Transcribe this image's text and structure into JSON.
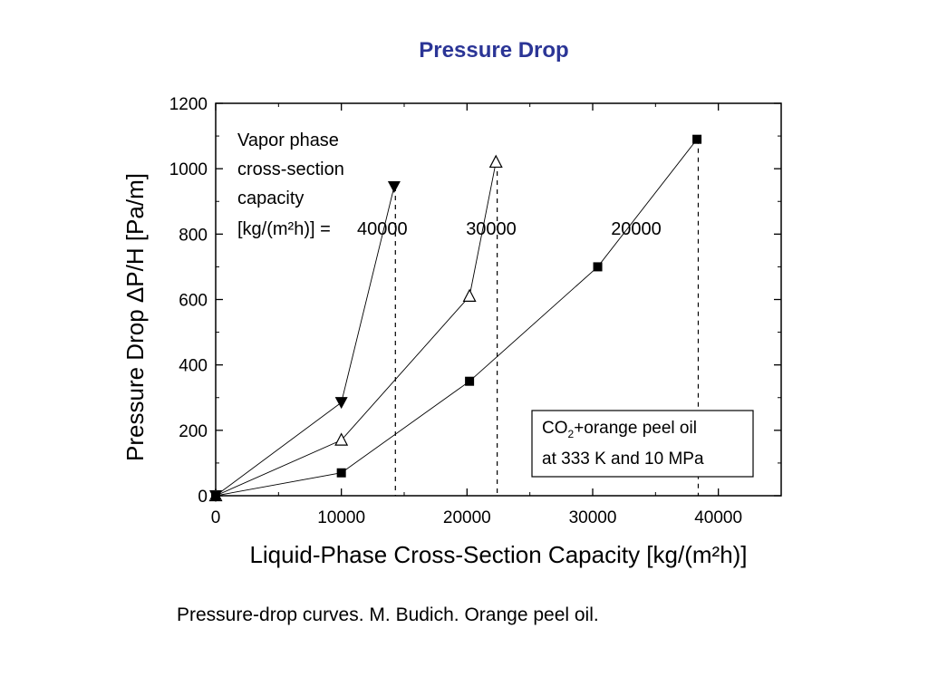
{
  "slide": {
    "title": "Pressure Drop",
    "caption": "Pressure-drop curves. M. Budich. Orange peel oil."
  },
  "chart_data": {
    "type": "line",
    "title": "",
    "xlabel": "Liquid-Phase Cross-Section Capacity [kg/(m²h)]",
    "ylabel": "Pressure Drop ΔP/H [Pa/m]",
    "xlim": [
      0,
      45000
    ],
    "ylim": [
      0,
      1200
    ],
    "xticks": [
      0,
      10000,
      20000,
      30000,
      40000
    ],
    "xtick_labels": [
      "0",
      "10000",
      "20000",
      "30000",
      "40000"
    ],
    "yticks": [
      0,
      200,
      400,
      600,
      800,
      1000,
      1200
    ],
    "ytick_labels": [
      "0",
      "200",
      "400",
      "600",
      "800",
      "1000",
      "1200"
    ],
    "grid": false,
    "series": [
      {
        "label": "40000",
        "marker": "filled-triangle-down",
        "x": [
          0,
          10000,
          14200
        ],
        "y": [
          0,
          285,
          945
        ],
        "flood_x": 14300
      },
      {
        "label": "30000",
        "marker": "open-triangle-up",
        "x": [
          0,
          10000,
          20200,
          22300
        ],
        "y": [
          0,
          170,
          610,
          1020
        ],
        "flood_x": 22400
      },
      {
        "label": "20000",
        "marker": "filled-square",
        "x": [
          0,
          10000,
          20200,
          30400,
          38300
        ],
        "y": [
          0,
          70,
          350,
          700,
          1090
        ],
        "flood_x": 38400
      }
    ],
    "annotations": {
      "vapor_lines": [
        "Vapor phase",
        "cross-section",
        "capacity",
        "[kg/(m²h)] = "
      ],
      "system_box": {
        "line1_prefix": "CO",
        "line1_sub": "2",
        "line1_rest": "+orange peel oil",
        "line2": "at 333 K and 10 MPa"
      }
    }
  }
}
